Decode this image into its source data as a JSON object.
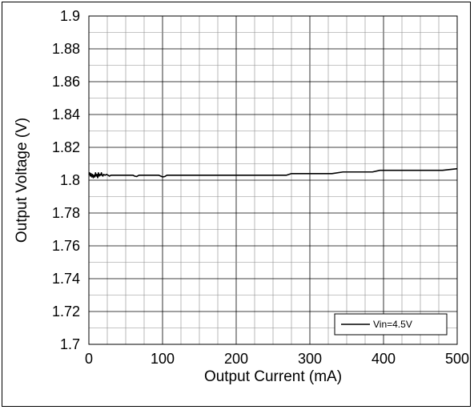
{
  "chart_data": {
    "type": "line",
    "title": "",
    "xlabel": "Output Current (mA)",
    "ylabel": "Output Voltage (V)",
    "xlim": [
      0,
      500
    ],
    "ylim": [
      1.7,
      1.9
    ],
    "x_ticks": [
      "0",
      "100",
      "200",
      "300",
      "400",
      "500"
    ],
    "y_ticks": [
      "1.9",
      "1.88",
      "1.86",
      "1.84",
      "1.82",
      "1.8",
      "1.78",
      "1.76",
      "1.74",
      "1.72",
      "1.7"
    ],
    "grid": true,
    "legend_position": "bottom-right",
    "series": [
      {
        "name": "Vin=4.5V",
        "color": "#000000",
        "x": [
          0,
          1,
          2,
          3,
          4,
          5,
          6,
          7,
          8,
          9,
          10,
          11,
          12,
          13,
          14,
          15,
          16,
          17,
          18,
          19,
          20,
          22,
          24,
          26,
          28,
          30,
          40,
          50,
          60,
          62,
          65,
          68,
          70,
          80,
          90,
          95,
          100,
          103,
          106,
          110,
          150,
          200,
          250,
          268,
          275,
          300,
          330,
          345,
          360,
          385,
          395,
          400,
          450,
          480,
          500
        ],
        "y": [
          1.8035,
          1.8045,
          1.8025,
          1.804,
          1.802,
          1.8035,
          1.8015,
          1.803,
          1.802,
          1.8045,
          1.8025,
          1.8035,
          1.8015,
          1.8045,
          1.8025,
          1.8035,
          1.803,
          1.8045,
          1.803,
          1.8025,
          1.8035,
          1.803,
          1.8035,
          1.803,
          1.8025,
          1.803,
          1.803,
          1.803,
          1.803,
          1.8025,
          1.8022,
          1.803,
          1.803,
          1.803,
          1.803,
          1.803,
          1.802,
          1.8022,
          1.803,
          1.803,
          1.803,
          1.803,
          1.803,
          1.803,
          1.804,
          1.804,
          1.804,
          1.805,
          1.805,
          1.805,
          1.806,
          1.806,
          1.806,
          1.806,
          1.807
        ]
      }
    ]
  }
}
